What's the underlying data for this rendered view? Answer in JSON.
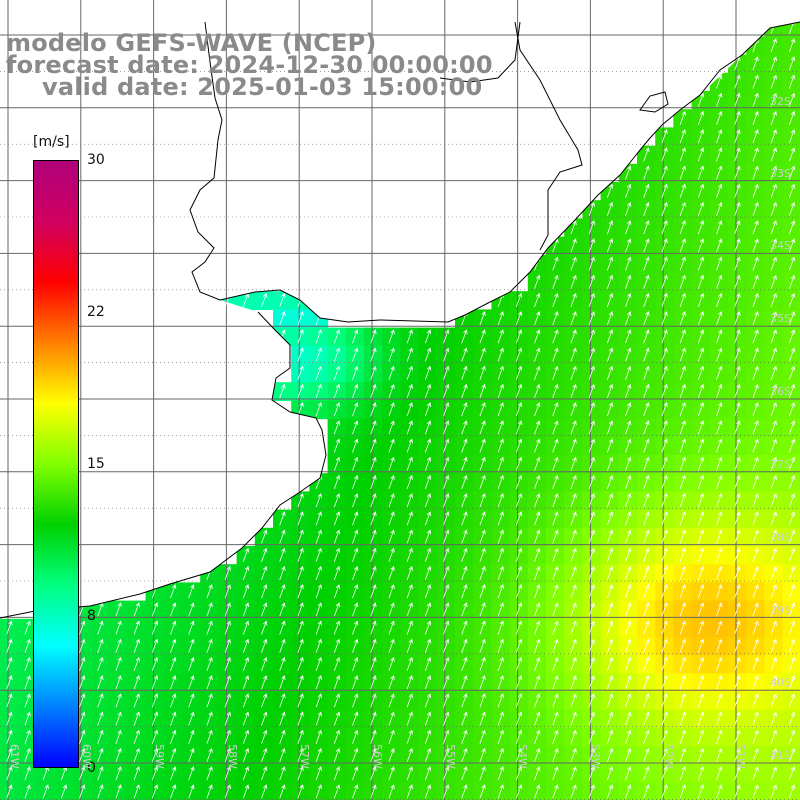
{
  "header": {
    "model": "modelo GEFS-WAVE (NCEP)",
    "forecast_date": "forecast date: 2024-12-30 00:00:00",
    "valid_date": "valid date: 2025-01-03 15:00:00"
  },
  "colorbar": {
    "unit": "[m/s]",
    "ticks": [
      "30",
      "22",
      "15",
      "8",
      "0"
    ],
    "min": 0,
    "max": 30,
    "colors": [
      "#0000ff",
      "#0080ff",
      "#00ffff",
      "#00ff80",
      "#00d000",
      "#80ff00",
      "#ffff00",
      "#ff8000",
      "#ff0000",
      "#d00060",
      "#b0007a"
    ]
  },
  "map": {
    "field": "wind speed",
    "land_color": "#ffffff",
    "grid_color": "#666666",
    "coast_color": "#000000",
    "lat_labels": [
      "32S",
      "33S",
      "34S",
      "35S",
      "36S",
      "37S",
      "38S",
      "39S",
      "40S",
      "41S"
    ],
    "lon_labels": [
      "61W",
      "60W",
      "59W",
      "58W",
      "57W",
      "56W",
      "55W",
      "54W",
      "53W",
      "52W",
      "51W"
    ],
    "lon_range": [
      -61,
      -50
    ],
    "lat_range": [
      -41.2,
      -30.4
    ],
    "arrow_color": "#ffffff"
  }
}
